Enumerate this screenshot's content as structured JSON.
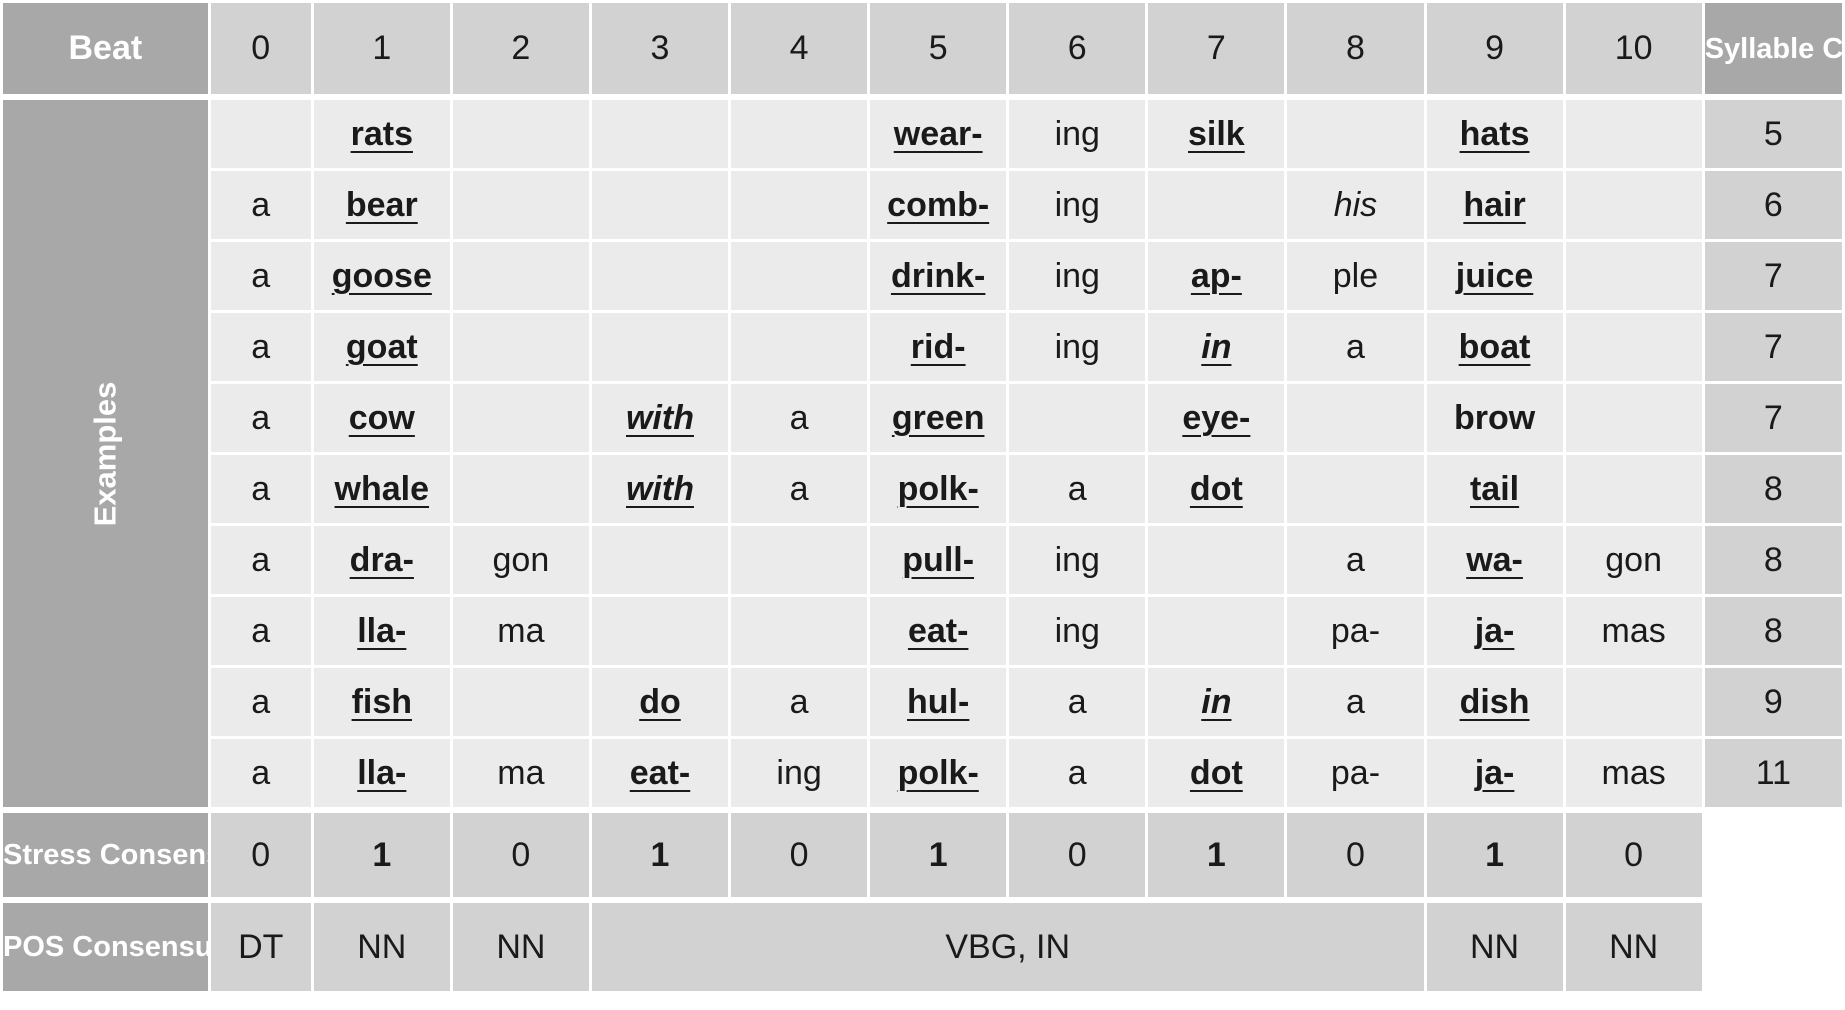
{
  "header": {
    "beat_label": "Beat",
    "beats": [
      "0",
      "1",
      "2",
      "3",
      "4",
      "5",
      "6",
      "7",
      "8",
      "9",
      "10"
    ],
    "syllable_count_label": "Syllable Count"
  },
  "examples_label": "Examples",
  "examples": [
    {
      "cells": [
        "",
        "rats",
        "",
        "",
        "",
        "wear-",
        "ing",
        "silk",
        "",
        "hats",
        ""
      ],
      "count": "5"
    },
    {
      "cells": [
        "a",
        "bear",
        "",
        "",
        "",
        "comb-",
        "ing",
        "",
        "his",
        "hair",
        ""
      ],
      "count": "6"
    },
    {
      "cells": [
        "a",
        "goose",
        "",
        "",
        "",
        "drink-",
        "ing",
        "ap-",
        "ple",
        "juice",
        ""
      ],
      "count": "7"
    },
    {
      "cells": [
        "a",
        "goat",
        "",
        "",
        "",
        "rid-",
        "ing",
        "in",
        "a",
        "boat",
        ""
      ],
      "count": "7"
    },
    {
      "cells": [
        "a",
        "cow",
        "",
        "with",
        "a",
        "green",
        "",
        "eye-",
        "",
        "brow",
        ""
      ],
      "count": "7"
    },
    {
      "cells": [
        "a",
        "whale",
        "",
        "with",
        "a",
        "polk-",
        "a",
        "dot",
        "",
        "tail",
        ""
      ],
      "count": "8"
    },
    {
      "cells": [
        "a",
        "dra-",
        "gon",
        "",
        "",
        "pull-",
        "ing",
        "",
        "a",
        "wa-",
        "gon"
      ],
      "count": "8"
    },
    {
      "cells": [
        "a",
        "lla-",
        "ma",
        "",
        "",
        "eat-",
        "ing",
        "",
        "pa-",
        "ja-",
        "mas"
      ],
      "count": "8"
    },
    {
      "cells": [
        "a",
        "fish",
        "",
        "do",
        "a",
        "hul-",
        "a",
        "in",
        "a",
        "dish",
        ""
      ],
      "count": "9"
    },
    {
      "cells": [
        "a",
        "lla-",
        "ma",
        "eat-",
        "ing",
        "polk-",
        "a",
        "dot",
        "pa-",
        "ja-",
        "mas"
      ],
      "count": "11"
    }
  ],
  "stress_consensus": {
    "label": "Stress Consensus",
    "values": [
      "0",
      "1",
      "0",
      "1",
      "0",
      "1",
      "0",
      "1",
      "0",
      "1",
      "0"
    ]
  },
  "pos_consensus": {
    "label": "POS Consensus",
    "values": [
      "DT",
      "NN",
      "NN",
      "VBG, IN",
      "NN",
      "NN"
    ]
  }
}
